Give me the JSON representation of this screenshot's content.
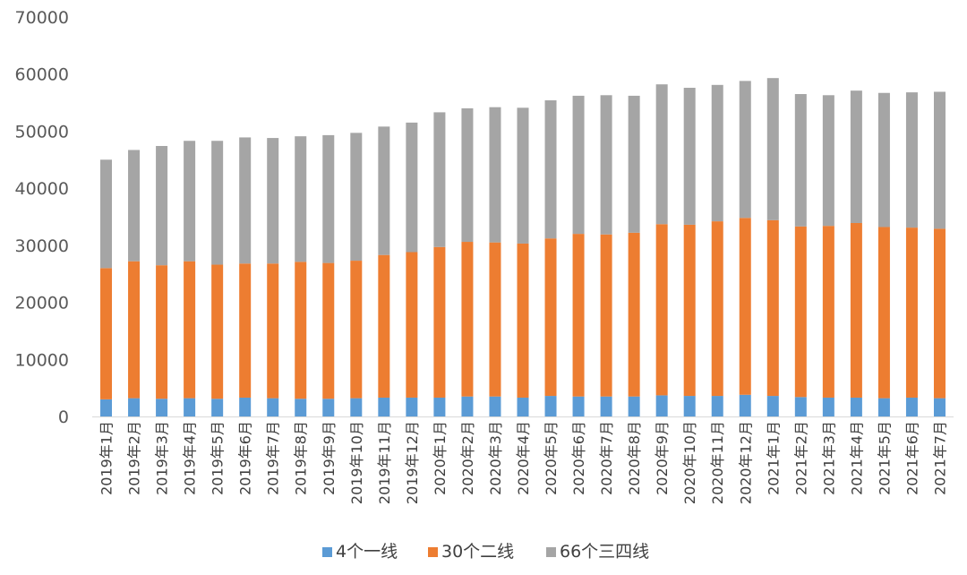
{
  "chart_data": {
    "type": "bar",
    "stacked": true,
    "categories": [
      "2019年1月",
      "2019年2月",
      "2019年3月",
      "2019年4月",
      "2019年5月",
      "2019年6月",
      "2019年7月",
      "2019年8月",
      "2019年9月",
      "2019年10月",
      "2019年11月",
      "2019年12月",
      "2020年1月",
      "2020年2月",
      "2020年3月",
      "2020年4月",
      "2020年5月",
      "2020年6月",
      "2020年7月",
      "2020年8月",
      "2020年9月",
      "2020年10月",
      "2020年11月",
      "2020年12月",
      "2021年1月",
      "2021年2月",
      "2021年3月",
      "2021年4月",
      "2021年5月",
      "2021年6月",
      "2021年7月"
    ],
    "series": [
      {
        "name": "4个一线",
        "color": "#5b9bd5",
        "values": [
          3000,
          3200,
          3100,
          3200,
          3100,
          3300,
          3200,
          3100,
          3100,
          3200,
          3300,
          3300,
          3300,
          3500,
          3500,
          3300,
          3600,
          3500,
          3500,
          3500,
          3700,
          3600,
          3600,
          3800,
          3600,
          3400,
          3300,
          3300,
          3200,
          3300,
          3200
        ]
      },
      {
        "name": "30个二线",
        "color": "#ed7d31",
        "values": [
          23000,
          24000,
          23400,
          24000,
          23500,
          23500,
          23600,
          24000,
          23800,
          24100,
          25000,
          25500,
          26400,
          27100,
          27000,
          27000,
          27600,
          28500,
          28400,
          28700,
          30000,
          30000,
          30600,
          31000,
          30800,
          29900,
          30100,
          30600,
          30000,
          29800,
          29700
        ]
      },
      {
        "name": "66个三四线",
        "color": "#a5a5a5",
        "values": [
          19000,
          19500,
          20900,
          21100,
          21700,
          22100,
          22000,
          22000,
          22400,
          22400,
          22500,
          22700,
          23600,
          23400,
          23700,
          23800,
          24200,
          24200,
          24400,
          24000,
          24500,
          24000,
          23900,
          24000,
          24900,
          23200,
          22900,
          23200,
          23500,
          23700,
          24000
        ]
      }
    ],
    "ylim": [
      0,
      70000
    ],
    "yticks": [
      "0",
      "10000",
      "20000",
      "30000",
      "40000",
      "50000",
      "60000",
      "70000"
    ],
    "ytick_values": [
      0,
      10000,
      20000,
      30000,
      40000,
      50000,
      60000,
      70000
    ],
    "grid": false,
    "legend_position": "bottom",
    "title": "",
    "xlabel": "",
    "ylabel": ""
  }
}
